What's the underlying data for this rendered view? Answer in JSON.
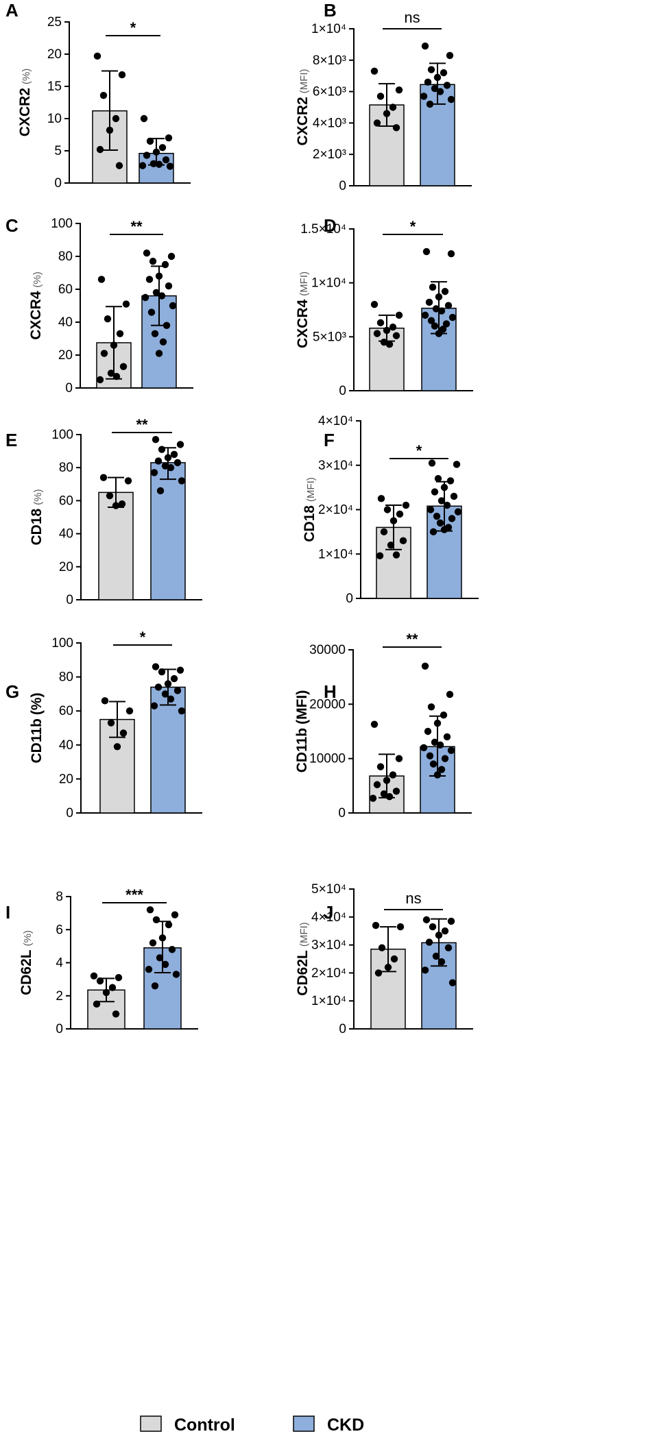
{
  "colors": {
    "control": "#d9d9d9",
    "ckd": "#8eaedb",
    "axis": "#000000",
    "dot": "#000000"
  },
  "legend": [
    {
      "key": "control",
      "label": "Control"
    },
    {
      "key": "ckd",
      "label": "CKD"
    }
  ],
  "chart_data": [
    {
      "panel": "A",
      "type": "bar",
      "ylabel": "CXCR2",
      "unit": "(%)",
      "unit_bold": false,
      "ylim": [
        0,
        25
      ],
      "ticks": [
        {
          "v": 0,
          "t": "0"
        },
        {
          "v": 5,
          "t": "5"
        },
        {
          "v": 10,
          "t": "10"
        },
        {
          "v": 15,
          "t": "15"
        },
        {
          "v": 20,
          "t": "20"
        },
        {
          "v": 25,
          "t": "25"
        }
      ],
      "sig": "*",
      "groups": [
        {
          "name": "Control",
          "mean": 11.2,
          "sd": [
            5.1,
            17.4
          ],
          "points": [
            19.7,
            16.8,
            13.6,
            10.0,
            8.2,
            5.2,
            2.7
          ]
        },
        {
          "name": "CKD",
          "mean": 4.6,
          "sd": [
            2.8,
            6.9
          ],
          "points": [
            10.0,
            7.0,
            6.5,
            5.5,
            4.8,
            4.3,
            3.6,
            3.0,
            2.9,
            2.7,
            2.6
          ]
        }
      ]
    },
    {
      "panel": "B",
      "type": "bar",
      "ylabel": "CXCR2",
      "unit": "(MFI)",
      "unit_bold": false,
      "ylim": [
        0,
        10000
      ],
      "ticks": [
        {
          "v": 0,
          "t": "0"
        },
        {
          "v": 2000,
          "t": "2×10³"
        },
        {
          "v": 4000,
          "t": "4×10³"
        },
        {
          "v": 6000,
          "t": "6×10³"
        },
        {
          "v": 8000,
          "t": "8×10³"
        },
        {
          "v": 10000,
          "t": "1×10⁴"
        }
      ],
      "sig": "ns",
      "groups": [
        {
          "name": "Control",
          "mean": 5150,
          "sd": [
            3800,
            6500
          ],
          "points": [
            7300,
            6100,
            5700,
            5000,
            4600,
            4000,
            3700
          ]
        },
        {
          "name": "CKD",
          "mean": 6450,
          "sd": [
            5200,
            7800
          ],
          "points": [
            8900,
            8300,
            7400,
            7200,
            6900,
            6600,
            6400,
            6200,
            6000,
            5700,
            5500,
            5200
          ]
        }
      ]
    },
    {
      "panel": "C",
      "type": "bar",
      "ylabel": "CXCR4",
      "unit": "(%)",
      "unit_bold": false,
      "ylim": [
        0,
        100
      ],
      "ticks": [
        {
          "v": 0,
          "t": "0"
        },
        {
          "v": 20,
          "t": "20"
        },
        {
          "v": 40,
          "t": "40"
        },
        {
          "v": 60,
          "t": "60"
        },
        {
          "v": 80,
          "t": "80"
        },
        {
          "v": 100,
          "t": "100"
        }
      ],
      "sig": "**",
      "groups": [
        {
          "name": "Control",
          "mean": 27.5,
          "sd": [
            5.5,
            49.5
          ],
          "points": [
            66,
            51,
            42,
            33,
            26,
            21,
            13,
            9,
            7,
            5
          ]
        },
        {
          "name": "CKD",
          "mean": 56,
          "sd": [
            38,
            74
          ],
          "points": [
            82,
            80,
            77,
            75,
            68,
            66,
            62,
            58,
            56,
            55,
            50,
            46,
            38,
            33,
            28,
            21
          ]
        }
      ]
    },
    {
      "panel": "D",
      "type": "bar",
      "ylabel": "CXCR4",
      "unit": "(MFI)",
      "unit_bold": false,
      "ylim": [
        0,
        15000
      ],
      "ticks": [
        {
          "v": 0,
          "t": "0"
        },
        {
          "v": 5000,
          "t": "5×10³"
        },
        {
          "v": 10000,
          "t": "1×10⁴"
        },
        {
          "v": 15000,
          "t": "1.5×10⁴"
        }
      ],
      "sig": "*",
      "groups": [
        {
          "name": "Control",
          "mean": 5800,
          "sd": [
            4600,
            7000
          ],
          "points": [
            8000,
            7000,
            6300,
            5900,
            5600,
            5300,
            5100,
            4500,
            4300
          ]
        },
        {
          "name": "CKD",
          "mean": 7650,
          "sd": [
            5300,
            10100
          ],
          "points": [
            12900,
            12700,
            9600,
            9200,
            8700,
            8200,
            7900,
            7600,
            7400,
            7000,
            6800,
            6500,
            6200,
            6000,
            5700,
            5300
          ]
        }
      ]
    },
    {
      "panel": "E",
      "type": "bar",
      "ylabel": "CD18",
      "unit": "(%)",
      "unit_bold": false,
      "ylim": [
        0,
        100
      ],
      "ticks": [
        {
          "v": 0,
          "t": "0"
        },
        {
          "v": 20,
          "t": "20"
        },
        {
          "v": 40,
          "t": "40"
        },
        {
          "v": 60,
          "t": "60"
        },
        {
          "v": 80,
          "t": "80"
        },
        {
          "v": 100,
          "t": "100"
        }
      ],
      "sig": "**",
      "groups": [
        {
          "name": "Control",
          "mean": 65,
          "sd": [
            56,
            74
          ],
          "points": [
            74,
            72,
            63,
            58,
            57
          ]
        },
        {
          "name": "CKD",
          "mean": 83,
          "sd": [
            73,
            92
          ],
          "points": [
            97,
            94,
            91,
            88,
            86,
            84,
            83,
            81,
            80,
            77,
            72,
            66
          ]
        }
      ]
    },
    {
      "panel": "F",
      "type": "bar",
      "ylabel": "CD18",
      "unit": "(MFI)",
      "unit_bold": false,
      "ylim": [
        0,
        40000
      ],
      "ticks": [
        {
          "v": 0,
          "t": "0"
        },
        {
          "v": 10000,
          "t": "1×10⁴"
        },
        {
          "v": 20000,
          "t": "2×10⁴"
        },
        {
          "v": 30000,
          "t": "3×10⁴"
        },
        {
          "v": 40000,
          "t": "4×10⁴"
        }
      ],
      "sig": "*",
      "groups": [
        {
          "name": "Control",
          "mean": 16000,
          "sd": [
            11000,
            21000
          ],
          "points": [
            22500,
            21000,
            20000,
            19000,
            17500,
            15000,
            13000,
            12000,
            9800,
            9600
          ]
        },
        {
          "name": "CKD",
          "mean": 20800,
          "sd": [
            15200,
            26300
          ],
          "points": [
            30500,
            30200,
            27000,
            26500,
            25000,
            24000,
            23000,
            22000,
            21000,
            20000,
            19500,
            18500,
            18000,
            17000,
            16000,
            15500,
            15000
          ]
        }
      ]
    },
    {
      "panel": "G",
      "type": "bar",
      "ylabel": "CD11b",
      "unit": "(%)",
      "unit_bold": true,
      "ylim": [
        0,
        100
      ],
      "ticks": [
        {
          "v": 0,
          "t": "0"
        },
        {
          "v": 20,
          "t": "20"
        },
        {
          "v": 40,
          "t": "40"
        },
        {
          "v": 60,
          "t": "60"
        },
        {
          "v": 80,
          "t": "80"
        },
        {
          "v": 100,
          "t": "100"
        }
      ],
      "sig": "*",
      "groups": [
        {
          "name": "Control",
          "mean": 55,
          "sd": [
            44.5,
            65.5
          ],
          "points": [
            66,
            60,
            53,
            47,
            39
          ]
        },
        {
          "name": "CKD",
          "mean": 74,
          "sd": [
            63.5,
            84.5
          ],
          "points": [
            86,
            84,
            83,
            79,
            76,
            74,
            72,
            70,
            67,
            63,
            60
          ]
        }
      ]
    },
    {
      "panel": "H",
      "type": "bar",
      "ylabel": "CD11b",
      "unit": "(MFI)",
      "unit_bold": true,
      "ylim": [
        0,
        30000
      ],
      "ticks": [
        {
          "v": 0,
          "t": "0"
        },
        {
          "v": 10000,
          "t": "10000"
        },
        {
          "v": 20000,
          "t": "20000"
        },
        {
          "v": 30000,
          "t": "30000"
        }
      ],
      "sig": "**",
      "groups": [
        {
          "name": "Control",
          "mean": 6800,
          "sd": [
            2800,
            10800
          ],
          "points": [
            16300,
            10000,
            8500,
            7000,
            6000,
            5200,
            4000,
            3500,
            3000,
            2700
          ]
        },
        {
          "name": "CKD",
          "mean": 12200,
          "sd": [
            6800,
            17800
          ],
          "points": [
            27000,
            21800,
            19500,
            18000,
            16500,
            15000,
            14000,
            13000,
            12500,
            12000,
            11500,
            10500,
            10000,
            9000,
            8000,
            7000
          ]
        }
      ]
    },
    {
      "panel": "I",
      "type": "bar",
      "ylabel": "CD62L",
      "unit": "(%)",
      "unit_bold": false,
      "ylim": [
        0,
        8
      ],
      "ticks": [
        {
          "v": 0,
          "t": "0"
        },
        {
          "v": 2,
          "t": "2"
        },
        {
          "v": 4,
          "t": "4"
        },
        {
          "v": 6,
          "t": "6"
        },
        {
          "v": 8,
          "t": "8"
        }
      ],
      "sig": "***",
      "groups": [
        {
          "name": "Control",
          "mean": 2.35,
          "sd": [
            1.65,
            3.05
          ],
          "points": [
            3.2,
            3.1,
            2.9,
            2.5,
            2.2,
            1.5,
            0.9
          ]
        },
        {
          "name": "CKD",
          "mean": 4.9,
          "sd": [
            3.4,
            6.5
          ],
          "points": [
            7.2,
            6.9,
            6.6,
            6.3,
            5.5,
            5.2,
            4.8,
            4.3,
            3.9,
            3.6,
            3.3,
            2.6
          ]
        }
      ]
    },
    {
      "panel": "J",
      "type": "bar",
      "ylabel": "CD62L",
      "unit": "(MFI)",
      "unit_bold": false,
      "ylim": [
        0,
        50000
      ],
      "ticks": [
        {
          "v": 0,
          "t": "0"
        },
        {
          "v": 10000,
          "t": "1×10⁴"
        },
        {
          "v": 20000,
          "t": "2×10⁴"
        },
        {
          "v": 30000,
          "t": "3×10⁴"
        },
        {
          "v": 40000,
          "t": "4×10⁴"
        },
        {
          "v": 50000,
          "t": "5×10⁴"
        }
      ],
      "sig": "ns",
      "groups": [
        {
          "name": "Control",
          "mean": 28500,
          "sd": [
            20500,
            36500
          ],
          "points": [
            37000,
            36500,
            29000,
            25000,
            22000,
            20000
          ]
        },
        {
          "name": "CKD",
          "mean": 30800,
          "sd": [
            22500,
            39300
          ],
          "points": [
            39000,
            38500,
            36500,
            35000,
            33500,
            31000,
            29000,
            26000,
            24000,
            21000,
            16500
          ]
        }
      ]
    }
  ]
}
